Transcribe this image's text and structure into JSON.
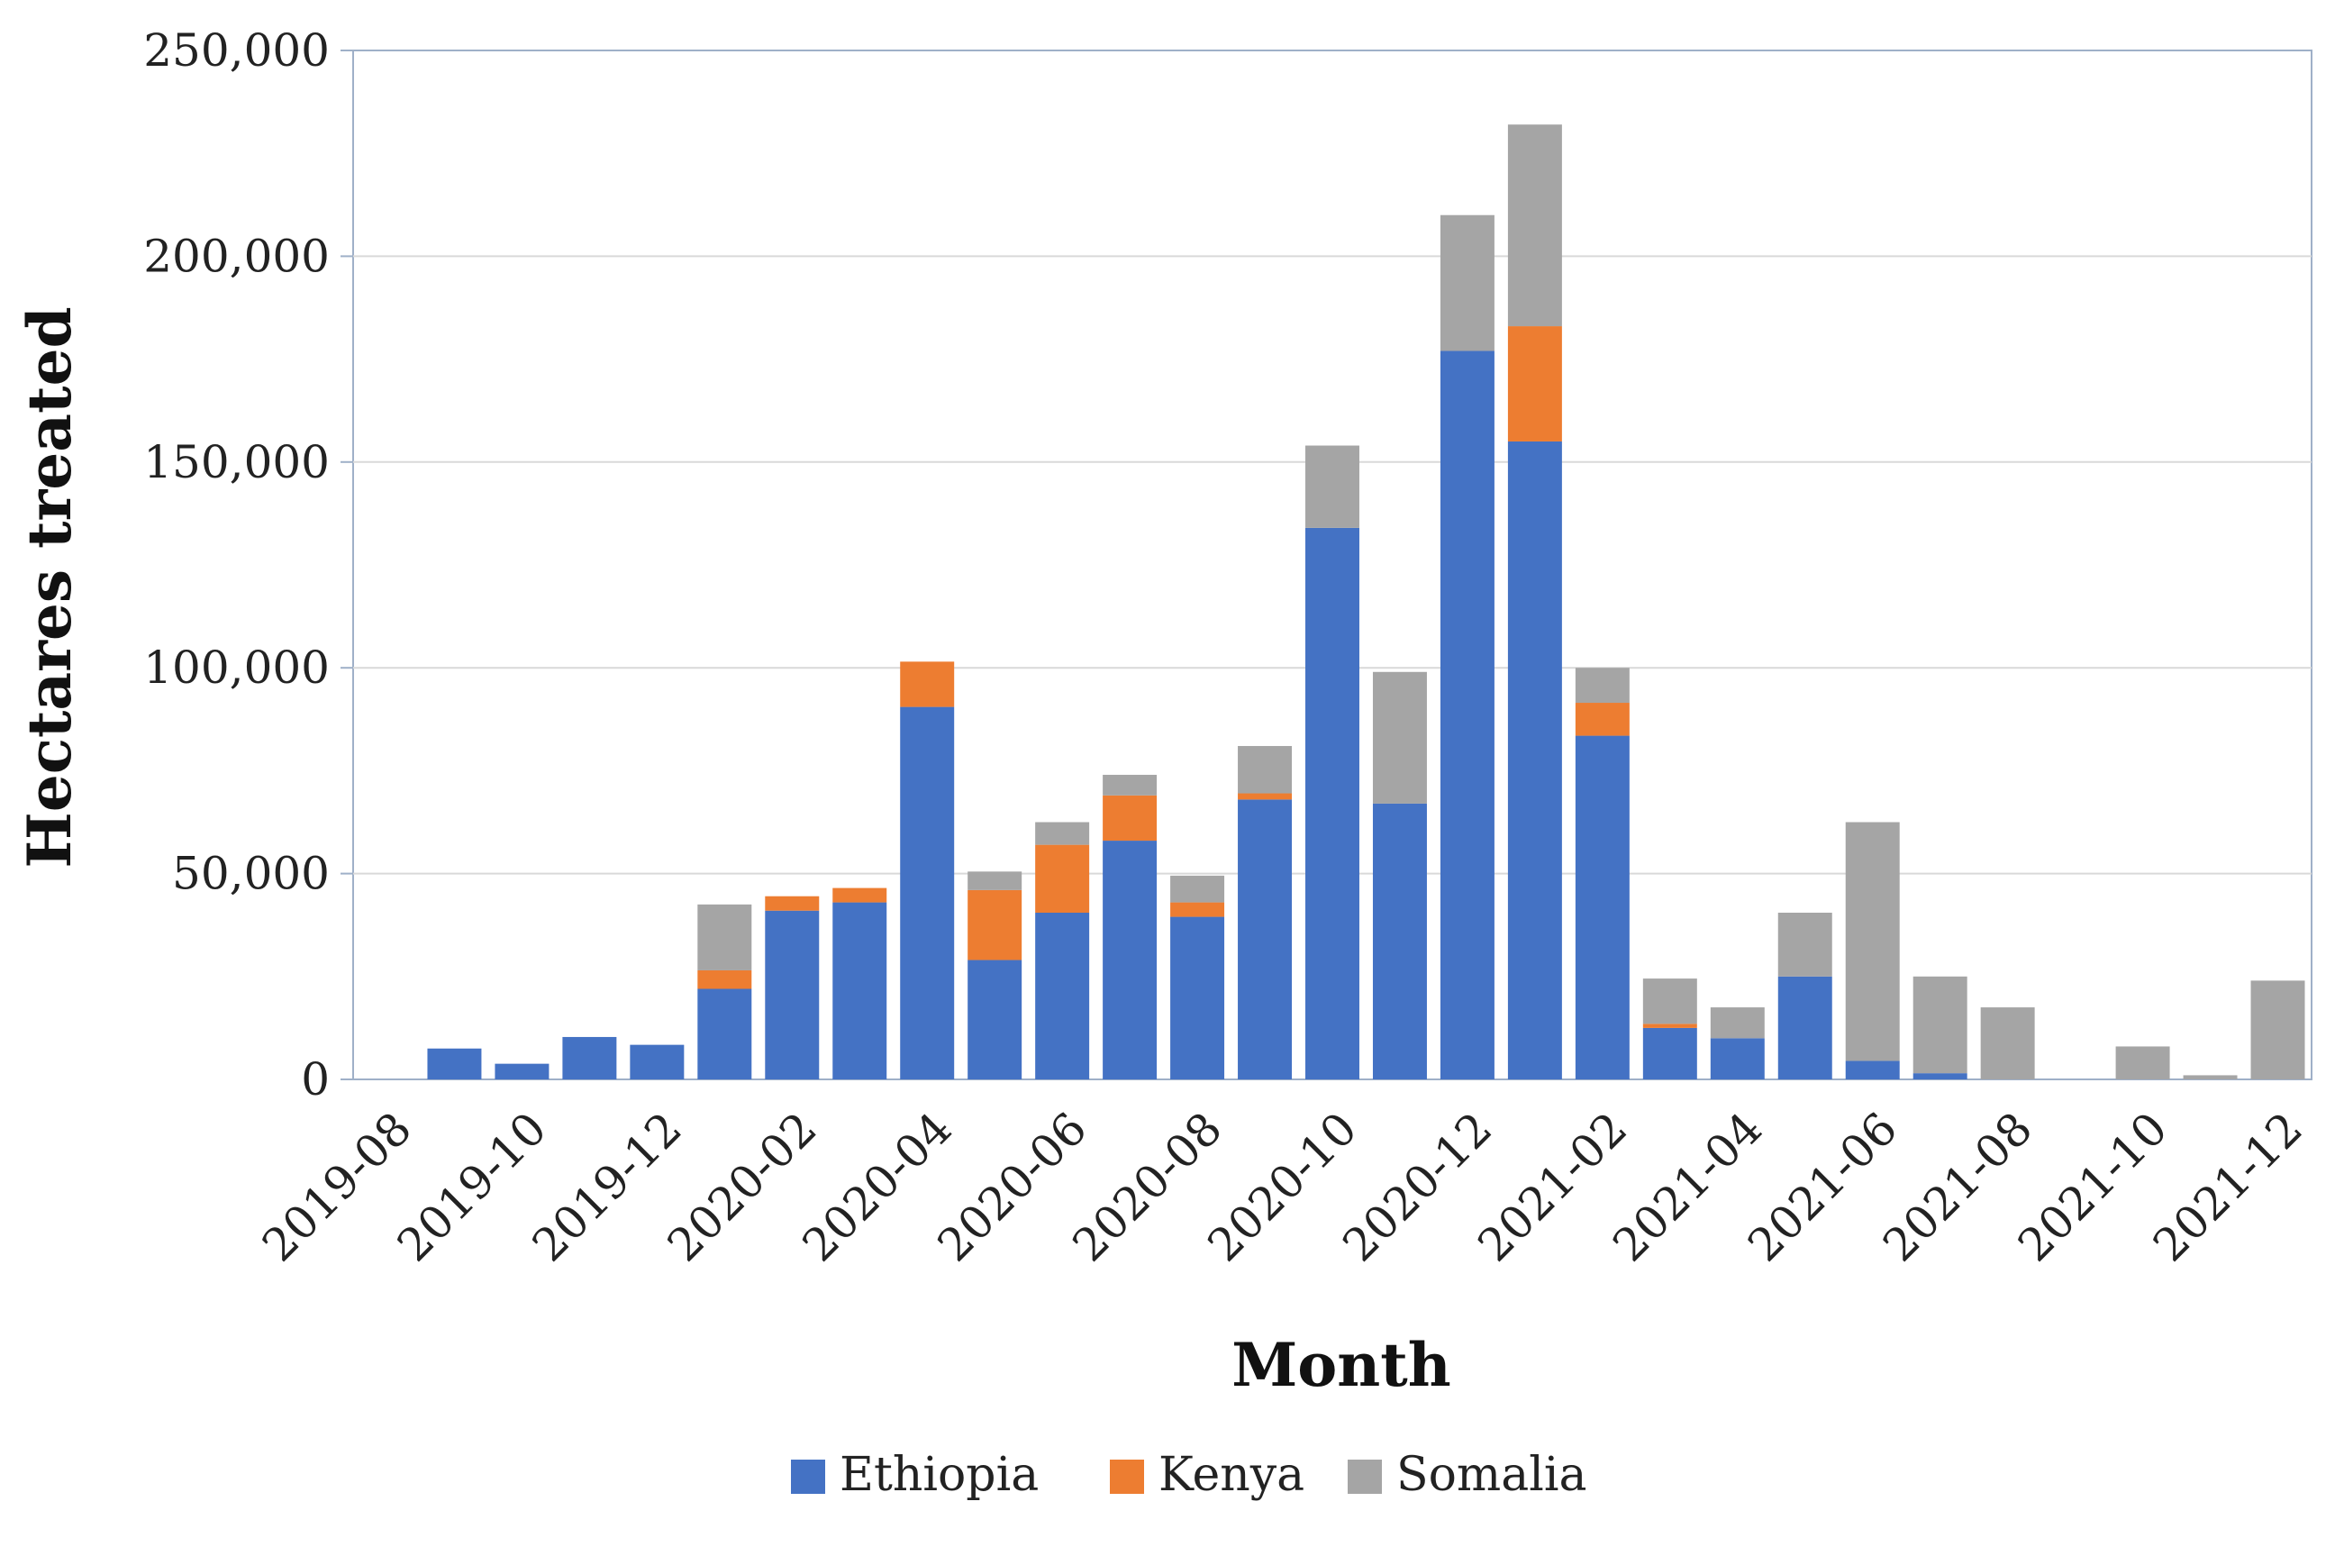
{
  "chart_data": {
    "type": "bar",
    "stacked": true,
    "title": "",
    "xlabel": "Month",
    "ylabel": "Hectares treated",
    "ylim": [
      0,
      250000
    ],
    "yticks": [
      0,
      50000,
      100000,
      150000,
      200000,
      250000
    ],
    "ytick_labels": [
      "0",
      "50,000",
      "100,000",
      "150,000",
      "200,000",
      "250,000"
    ],
    "xtick_labels": [
      "2019-08",
      "2019-10",
      "2019-12",
      "2020-02",
      "2020-04",
      "2020-06",
      "2020-08",
      "2020-10",
      "2020-12",
      "2021-02",
      "2021-04",
      "2021-06",
      "2021-08",
      "2021-10",
      "2021-12"
    ],
    "categories": [
      "2019-08",
      "2019-09",
      "2019-10",
      "2019-11",
      "2019-12",
      "2020-01",
      "2020-02",
      "2020-03",
      "2020-04",
      "2020-05",
      "2020-06",
      "2020-07",
      "2020-08",
      "2020-09",
      "2020-10",
      "2020-11",
      "2020-12",
      "2021-01",
      "2021-02",
      "2021-03",
      "2021-04",
      "2021-05",
      "2021-06",
      "2021-07",
      "2021-08",
      "2021-09",
      "2021-10",
      "2021-11",
      "2021-12"
    ],
    "series": [
      {
        "name": "Ethiopia",
        "color": "#4472c4",
        "values": [
          0,
          7500,
          3800,
          10300,
          8400,
          22000,
          41000,
          43000,
          90500,
          29000,
          40500,
          58000,
          39500,
          68000,
          134000,
          67000,
          177000,
          155000,
          83500,
          12500,
          10000,
          25000,
          4500,
          1500,
          0,
          0,
          0,
          0,
          0
        ]
      },
      {
        "name": "Kenya",
        "color": "#ed7d31",
        "values": [
          0,
          0,
          0,
          0,
          0,
          4500,
          3500,
          3500,
          11000,
          17000,
          16500,
          11000,
          3500,
          1500,
          0,
          0,
          0,
          28000,
          8000,
          1000,
          0,
          0,
          0,
          0,
          0,
          0,
          0,
          0,
          0
        ]
      },
      {
        "name": "Somalia",
        "color": "#a5a5a5",
        "values": [
          0,
          0,
          0,
          0,
          0,
          16000,
          0,
          0,
          0,
          4500,
          5500,
          5000,
          6500,
          11500,
          20000,
          32000,
          33000,
          49000,
          8500,
          11000,
          7500,
          15500,
          58000,
          23500,
          17500,
          0,
          8000,
          1000,
          24000
        ]
      }
    ],
    "legend_position": "bottom",
    "grid": true
  }
}
